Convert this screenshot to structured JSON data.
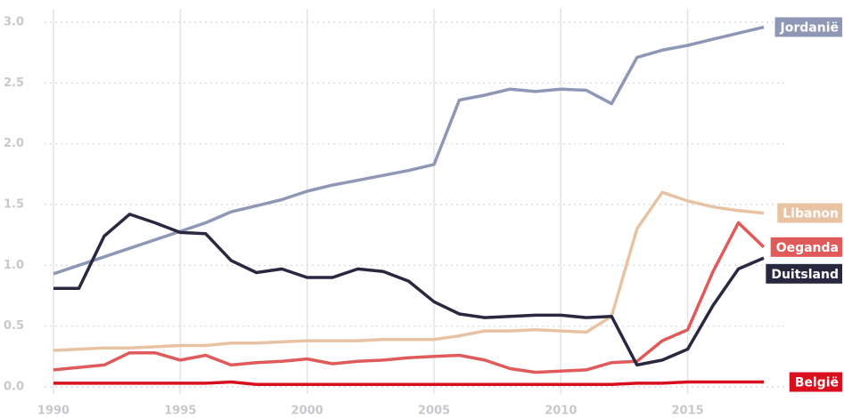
{
  "chart_data": {
    "type": "line",
    "x": [
      1990,
      1991,
      1992,
      1993,
      1994,
      1995,
      1996,
      1997,
      1998,
      1999,
      2000,
      2001,
      2002,
      2003,
      2004,
      2005,
      2006,
      2007,
      2008,
      2009,
      2010,
      2011,
      2012,
      2013,
      2014,
      2015,
      2016,
      2017,
      2018
    ],
    "xlim": [
      1990,
      2018
    ],
    "xticks": [
      1990,
      1995,
      2000,
      2005,
      2010,
      2015
    ],
    "ylim": [
      0,
      3
    ],
    "yticks": [
      {
        "value": 0,
        "label": "0.0"
      },
      0.5,
      {
        "value": 1,
        "label": "1.0"
      },
      1.5,
      {
        "value": 2,
        "label": "2.0"
      },
      2.5,
      {
        "value": 3,
        "label": "3.0"
      }
    ],
    "grid": true,
    "series": [
      {
        "name": "Jordanië",
        "color": "#8e97b5",
        "values": [
          0.93,
          1.0,
          1.07,
          1.14,
          1.21,
          1.28,
          1.35,
          1.44,
          1.49,
          1.54,
          1.61,
          1.66,
          1.7,
          1.74,
          1.78,
          1.83,
          2.36,
          2.4,
          2.45,
          2.43,
          2.45,
          2.44,
          2.33,
          2.71,
          2.77,
          2.81,
          2.86,
          2.91,
          2.96
        ]
      },
      {
        "name": "Libanon",
        "color": "#e8c3a3",
        "values": [
          0.3,
          0.31,
          0.32,
          0.32,
          0.33,
          0.34,
          0.34,
          0.36,
          0.36,
          0.37,
          0.38,
          0.38,
          0.38,
          0.39,
          0.39,
          0.39,
          0.42,
          0.46,
          0.46,
          0.47,
          0.46,
          0.45,
          0.58,
          1.3,
          1.6,
          1.53,
          1.48,
          1.45,
          1.43
        ]
      },
      {
        "name": "Oeganda",
        "color": "#e05a5a",
        "values": [
          0.14,
          0.16,
          0.18,
          0.28,
          0.28,
          0.22,
          0.26,
          0.18,
          0.2,
          0.21,
          0.23,
          0.19,
          0.21,
          0.22,
          0.24,
          0.25,
          0.26,
          0.22,
          0.15,
          0.12,
          0.13,
          0.14,
          0.2,
          0.21,
          0.38,
          0.47,
          0.95,
          1.35,
          1.15
        ]
      },
      {
        "name": "Duitsland",
        "color": "#2a2840",
        "values": [
          0.81,
          0.81,
          1.24,
          1.42,
          1.35,
          1.27,
          1.26,
          1.04,
          0.94,
          0.97,
          0.9,
          0.9,
          0.97,
          0.95,
          0.87,
          0.7,
          0.6,
          0.57,
          0.58,
          0.59,
          0.59,
          0.57,
          0.58,
          0.18,
          0.22,
          0.31,
          0.67,
          0.97,
          1.06
        ]
      },
      {
        "name": "België",
        "color": "#d8101e",
        "values": [
          0.03,
          0.03,
          0.03,
          0.03,
          0.03,
          0.03,
          0.03,
          0.04,
          0.02,
          0.02,
          0.02,
          0.02,
          0.02,
          0.02,
          0.02,
          0.02,
          0.02,
          0.02,
          0.02,
          0.02,
          0.02,
          0.02,
          0.02,
          0.03,
          0.03,
          0.04,
          0.04,
          0.04,
          0.04
        ]
      }
    ]
  }
}
